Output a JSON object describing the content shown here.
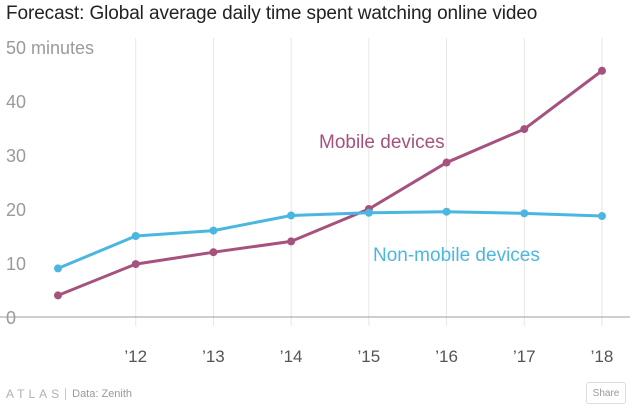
{
  "title": "Forecast: Global average daily time spent watching online video",
  "footer": {
    "brand": "ATLAS",
    "source": "Data: Zenith",
    "share_label": "Share"
  },
  "chart_data": {
    "type": "line",
    "x": [
      2011,
      2012,
      2013,
      2014,
      2015,
      2016,
      2017,
      2018
    ],
    "x_tick_labels": [
      "",
      "’12",
      "’13",
      "’14",
      "’15",
      "’16",
      "’17",
      "’18"
    ],
    "y_tick_labels": [
      "0",
      "10",
      "20",
      "30",
      "40",
      "50 minutes"
    ],
    "ylim": [
      0,
      50
    ],
    "grid": "vertical",
    "series": [
      {
        "name": "Mobile devices",
        "color": "#a6527f",
        "values": [
          4,
          9.8,
          12,
          14,
          20,
          28.6,
          34.8,
          45.6
        ]
      },
      {
        "name": "Non-mobile devices",
        "color": "#4bb7e0",
        "values": [
          9,
          15,
          16,
          18.8,
          19.3,
          19.5,
          19.2,
          18.7
        ]
      }
    ]
  }
}
